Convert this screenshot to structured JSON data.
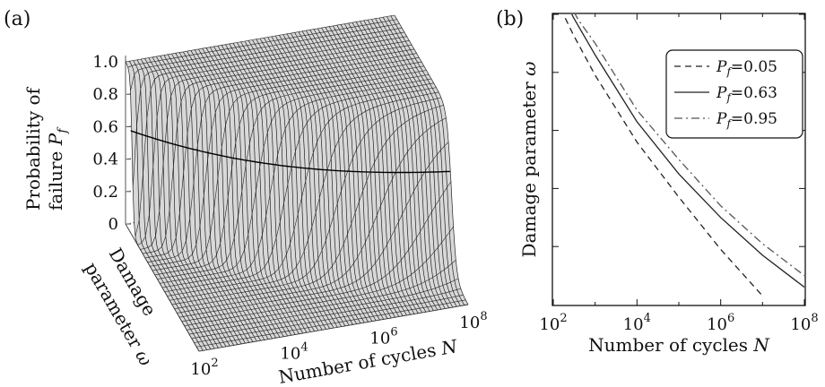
{
  "chart_data": [
    {
      "panel": "(a)",
      "type": "surface",
      "zlabel_line1": "Probability of",
      "zlabel_line2": "failure",
      "zlabel_var": "P",
      "zlabel_sub": "f",
      "ylabel_line1": "Damage",
      "ylabel_line2": "parameter",
      "ylabel_var": "ω",
      "xlabel": "Number of cycles",
      "xlabel_var": "N",
      "xscale": "log",
      "xlim": [
        100,
        100000000
      ],
      "x_ticks": [
        {
          "base": "10",
          "exp": "2"
        },
        {
          "base": "10",
          "exp": "4"
        },
        {
          "base": "10",
          "exp": "6"
        },
        {
          "base": "10",
          "exp": "8"
        }
      ],
      "z_ticks": [
        "0",
        "0.2",
        "0.4",
        "0.6",
        "0.8",
        "1.0"
      ],
      "zlim": [
        0,
        1
      ],
      "grid": true
    },
    {
      "panel": "(b)",
      "type": "line",
      "xlabel": "Number of cycles",
      "xlabel_var": "N",
      "ylabel": "Damage parameter",
      "ylabel_var": "ω",
      "xscale": "log",
      "xlim": [
        100,
        100000000
      ],
      "x_ticks": [
        {
          "base": "10",
          "exp": "2"
        },
        {
          "base": "10",
          "exp": "4"
        },
        {
          "base": "10",
          "exp": "6"
        },
        {
          "base": "10",
          "exp": "8"
        }
      ],
      "legend_position": "top-right",
      "legend_var": "P",
      "legend_sub": "f",
      "series": [
        {
          "name": "=0.05",
          "dash": "dashed",
          "x": [
            150,
            300,
            1000,
            10000,
            100000,
            1000000,
            10000000
          ],
          "y": [
            1.02,
            0.93,
            0.79,
            0.56,
            0.37,
            0.19,
            0.03
          ]
        },
        {
          "name": "=0.63",
          "dash": "solid",
          "x": [
            150,
            300,
            1000,
            10000,
            100000,
            1000000,
            10000000,
            100000000
          ],
          "y": [
            1.08,
            0.99,
            0.86,
            0.63,
            0.45,
            0.3,
            0.17,
            0.06
          ]
        },
        {
          "name": "=0.95",
          "dash": "dashdot",
          "x": [
            200,
            400,
            1000,
            10000,
            100000,
            1000000,
            10000000,
            100000000
          ],
          "y": [
            1.06,
            0.98,
            0.9,
            0.67,
            0.5,
            0.34,
            0.21,
            0.1
          ]
        }
      ],
      "ylim": [
        0,
        1
      ]
    }
  ]
}
